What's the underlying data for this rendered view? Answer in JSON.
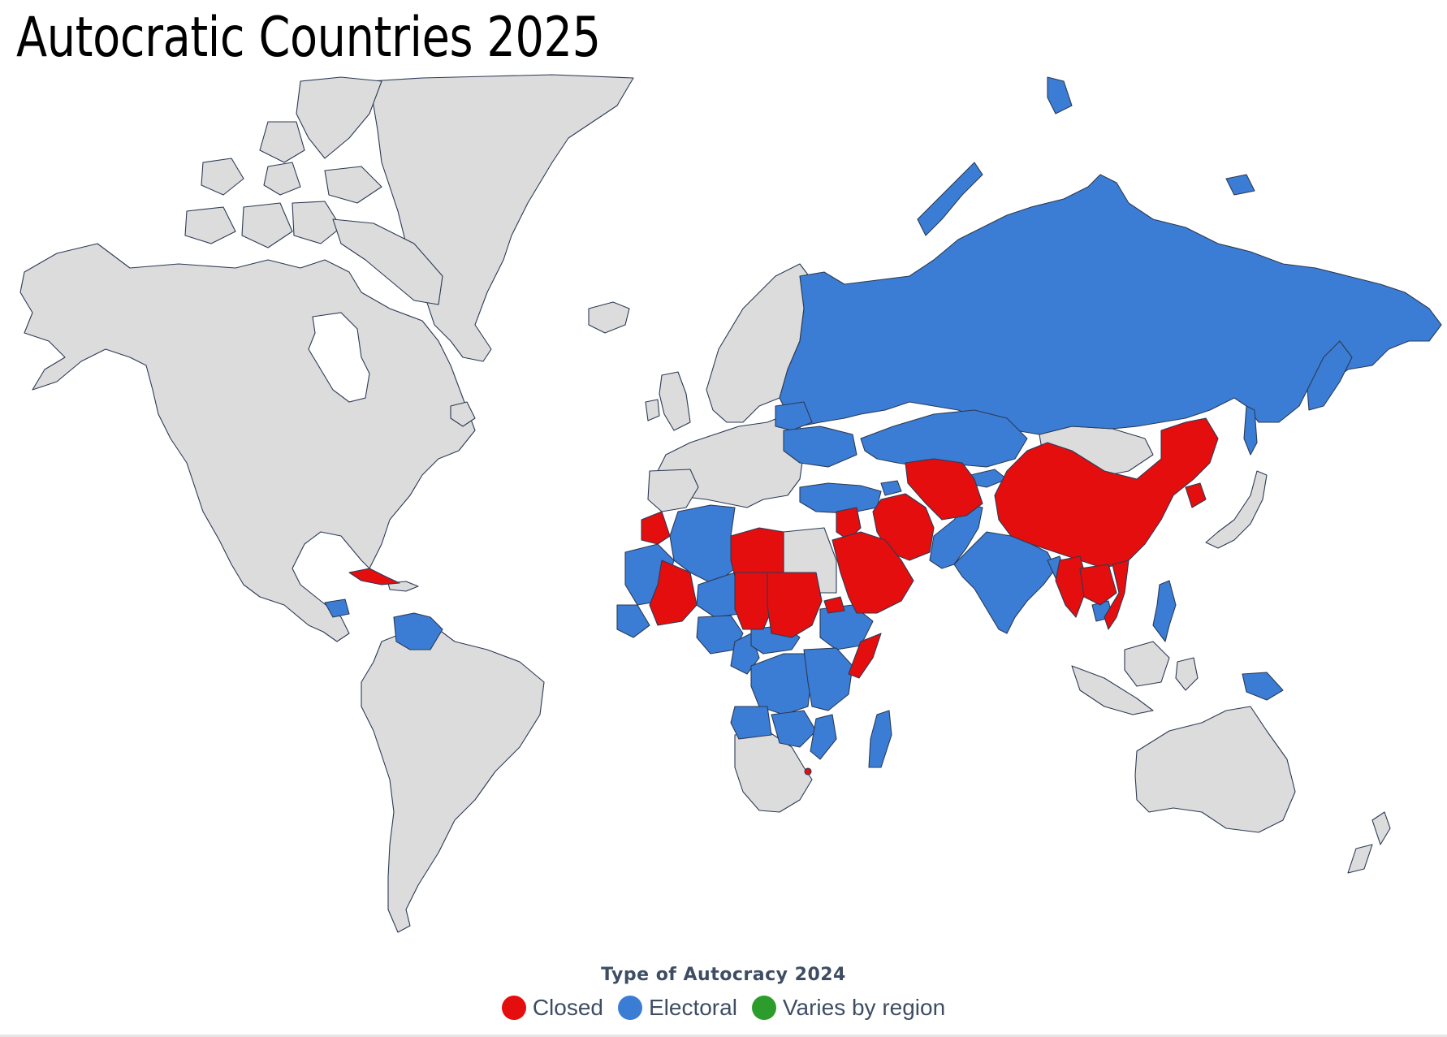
{
  "title": "Autocratic Countries 2025",
  "legend": {
    "title": "Type of Autocracy 2024",
    "items": [
      {
        "label": "Closed",
        "color": "#e40e0e"
      },
      {
        "label": "Electoral",
        "color": "#3b7dd4"
      },
      {
        "label": "Varies by region",
        "color": "#2c9c2c"
      }
    ]
  },
  "colors": {
    "closed": "#e40e0e",
    "electoral": "#3b7dd4",
    "none": "#dcdcdc",
    "border": "#2b3a55"
  },
  "categories": {
    "closed": [
      "Cuba",
      "Western Sahara",
      "Libya",
      "Chad",
      "Sudan",
      "South Sudan",
      "Mali",
      "Burkina Faso",
      "Guinea",
      "Somalia",
      "Eritrea",
      "Eswatini",
      "Saudi Arabia",
      "Oman",
      "Yemen",
      "UAE",
      "Qatar",
      "Bahrain",
      "Kuwait",
      "Jordan",
      "Syria",
      "Iran",
      "Afghanistan",
      "Turkmenistan",
      "Uzbekistan",
      "Tajikistan",
      "China",
      "North Korea",
      "Myanmar",
      "Laos",
      "Vietnam",
      "Thailand"
    ],
    "electoral": [
      "Russia",
      "Belarus",
      "Ukraine",
      "Turkey",
      "Azerbaijan",
      "Kazakhstan",
      "Kyrgyzstan",
      "Pakistan",
      "India",
      "Bangladesh",
      "Cambodia",
      "Philippines",
      "Papua New Guinea",
      "Venezuela",
      "Nicaragua",
      "Algeria",
      "Mauritania",
      "Niger",
      "Nigeria",
      "Cameroon",
      "Central African Republic",
      "Ethiopia",
      "Egypt",
      "Uganda",
      "Kenya",
      "Tanzania",
      "DR Congo",
      "Congo",
      "Gabon",
      "Angola",
      "Zambia",
      "Zimbabwe",
      "Mozambique",
      "Madagascar",
      "Togo",
      "Guinea-Bissau",
      "Serbia",
      "Hungary"
    ]
  }
}
